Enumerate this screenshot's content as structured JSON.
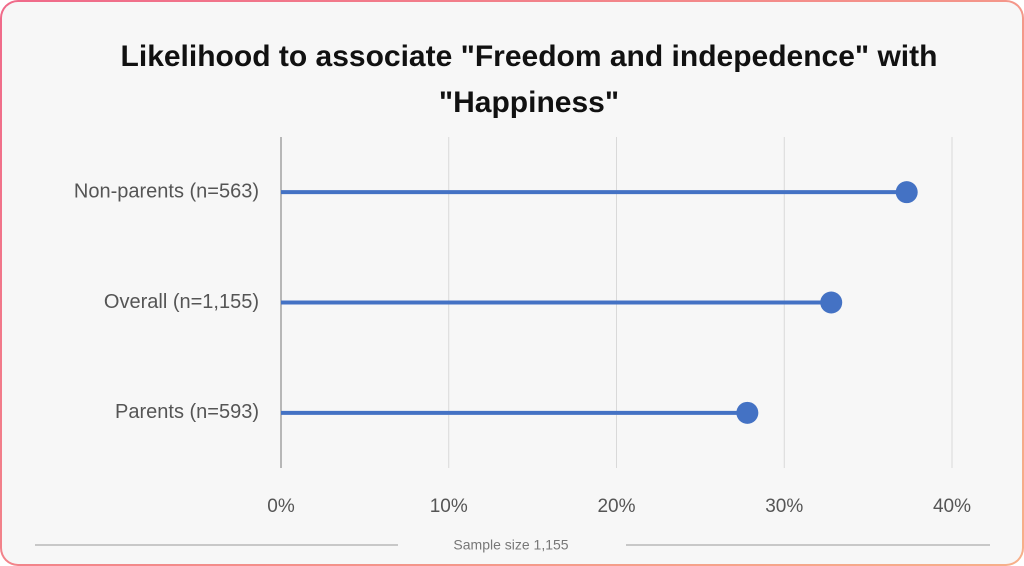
{
  "chart_data": {
    "type": "lollipop",
    "title": "Likelihood to associate \"Freedom and indepedence\" with \"Happiness\"",
    "categories": [
      "Non-parents (n=563)",
      "Overall (n=1,155)",
      "Parents (n=593)"
    ],
    "values": [
      37.3,
      32.8,
      27.8
    ],
    "color": "#4472c4",
    "xlim": [
      0,
      40
    ],
    "xticks": [
      {
        "value": 0,
        "label": "0%"
      },
      {
        "value": 10,
        "label": "10%"
      },
      {
        "value": 20,
        "label": "20%"
      },
      {
        "value": 30,
        "label": "30%"
      },
      {
        "value": 40,
        "label": "40%"
      }
    ],
    "grid": true,
    "note": "Sample size 1,155"
  }
}
